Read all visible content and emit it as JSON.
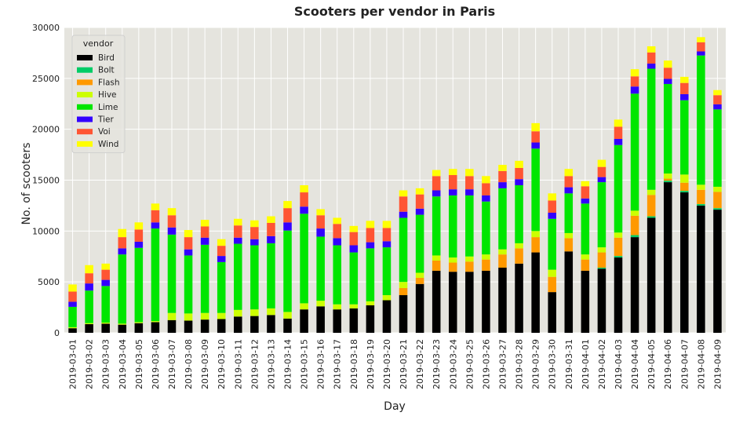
{
  "chart_data": {
    "type": "bar",
    "stacked": true,
    "title": "Scooters per vendor in Paris",
    "xlabel": "Day",
    "ylabel": "No. of scooters",
    "ylim": [
      0,
      30000
    ],
    "yticks": [
      0,
      5000,
      10000,
      15000,
      20000,
      25000,
      30000
    ],
    "grid": true,
    "legend": {
      "title": "vendor",
      "placement": "top-left"
    },
    "categories": [
      "2019-03-01",
      "2019-03-02",
      "2019-03-03",
      "2019-03-04",
      "2019-03-05",
      "2019-03-06",
      "2019-03-07",
      "2019-03-08",
      "2019-03-09",
      "2019-03-10",
      "2019-03-11",
      "2019-03-12",
      "2019-03-13",
      "2019-03-14",
      "2019-03-15",
      "2019-03-16",
      "2019-03-17",
      "2019-03-18",
      "2019-03-19",
      "2019-03-20",
      "2019-03-21",
      "2019-03-22",
      "2019-03-23",
      "2019-03-24",
      "2019-03-25",
      "2019-03-26",
      "2019-03-27",
      "2019-03-28",
      "2019-03-29",
      "2019-03-30",
      "2019-03-31",
      "2019-04-01",
      "2019-04-02",
      "2019-04-03",
      "2019-04-04",
      "2019-04-05",
      "2019-04-06",
      "2019-04-07",
      "2019-04-08",
      "2019-04-09"
    ],
    "series": [
      {
        "name": "Bird",
        "color": "#000000",
        "values": [
          450,
          850,
          900,
          800,
          950,
          1050,
          1250,
          1200,
          1300,
          1350,
          1600,
          1650,
          1750,
          1400,
          2300,
          2600,
          2300,
          2400,
          2700,
          3200,
          3700,
          4800,
          6100,
          6000,
          6000,
          6100,
          6400,
          6800,
          7900,
          4000,
          8000,
          6100,
          6300,
          7400,
          9400,
          11300,
          14800,
          13800,
          12500,
          12100
        ]
      },
      {
        "name": "Bolt",
        "color": "#00cc66",
        "values": [
          0,
          0,
          0,
          0,
          0,
          0,
          0,
          0,
          0,
          0,
          0,
          0,
          0,
          0,
          0,
          0,
          0,
          0,
          0,
          0,
          0,
          0,
          0,
          0,
          0,
          0,
          0,
          0,
          0,
          0,
          0,
          0,
          100,
          150,
          200,
          150,
          150,
          150,
          150,
          150
        ]
      },
      {
        "name": "Flash",
        "color": "#ff9900",
        "values": [
          0,
          0,
          0,
          0,
          0,
          0,
          0,
          0,
          0,
          0,
          0,
          0,
          0,
          0,
          0,
          0,
          0,
          0,
          0,
          0,
          700,
          600,
          1000,
          900,
          1000,
          1100,
          1300,
          1500,
          1500,
          1500,
          1300,
          1100,
          1500,
          1800,
          1900,
          2100,
          200,
          800,
          1400,
          1600
        ]
      },
      {
        "name": "Hive",
        "color": "#ccff00",
        "values": [
          100,
          100,
          100,
          100,
          100,
          100,
          700,
          700,
          650,
          600,
          650,
          650,
          650,
          650,
          600,
          550,
          500,
          400,
          400,
          500,
          600,
          500,
          500,
          500,
          500,
          500,
          500,
          500,
          600,
          700,
          500,
          500,
          500,
          500,
          500,
          500,
          500,
          800,
          500,
          500
        ]
      },
      {
        "name": "Lime",
        "color": "#00e600",
        "values": [
          2000,
          3200,
          3600,
          6800,
          7300,
          9100,
          7700,
          5700,
          6700,
          5000,
          6500,
          6300,
          6400,
          8000,
          8800,
          6300,
          5800,
          5100,
          5200,
          4700,
          6300,
          5700,
          5800,
          6100,
          6000,
          5200,
          6000,
          5700,
          8100,
          5000,
          3900,
          5000,
          6400,
          8600,
          11500,
          11900,
          8800,
          7300,
          12700,
          7600
        ]
      },
      {
        "name": "Tier",
        "color": "#3300ff",
        "values": [
          500,
          700,
          600,
          600,
          600,
          600,
          700,
          600,
          700,
          600,
          600,
          600,
          700,
          800,
          700,
          800,
          700,
          700,
          600,
          600,
          600,
          600,
          600,
          600,
          600,
          600,
          600,
          600,
          600,
          600,
          600,
          500,
          500,
          600,
          700,
          500,
          500,
          600,
          400,
          500
        ]
      },
      {
        "name": "Voi",
        "color": "#ff5533",
        "values": [
          1000,
          1000,
          1000,
          1100,
          1200,
          1200,
          1200,
          1200,
          1100,
          1000,
          1200,
          1200,
          1300,
          1400,
          1400,
          1300,
          1400,
          1300,
          1400,
          1300,
          1500,
          1400,
          1400,
          1400,
          1300,
          1200,
          1100,
          1100,
          1100,
          1200,
          1100,
          1200,
          1000,
          1200,
          1000,
          1100,
          1100,
          1100,
          900,
          900
        ]
      },
      {
        "name": "Wind",
        "color": "#ffff00",
        "values": [
          700,
          800,
          600,
          800,
          700,
          650,
          700,
          700,
          650,
          650,
          650,
          650,
          650,
          700,
          700,
          600,
          600,
          600,
          700,
          700,
          600,
          600,
          600,
          600,
          700,
          700,
          600,
          700,
          800,
          700,
          700,
          500,
          700,
          700,
          700,
          600,
          700,
          600,
          500,
          500
        ]
      }
    ]
  }
}
